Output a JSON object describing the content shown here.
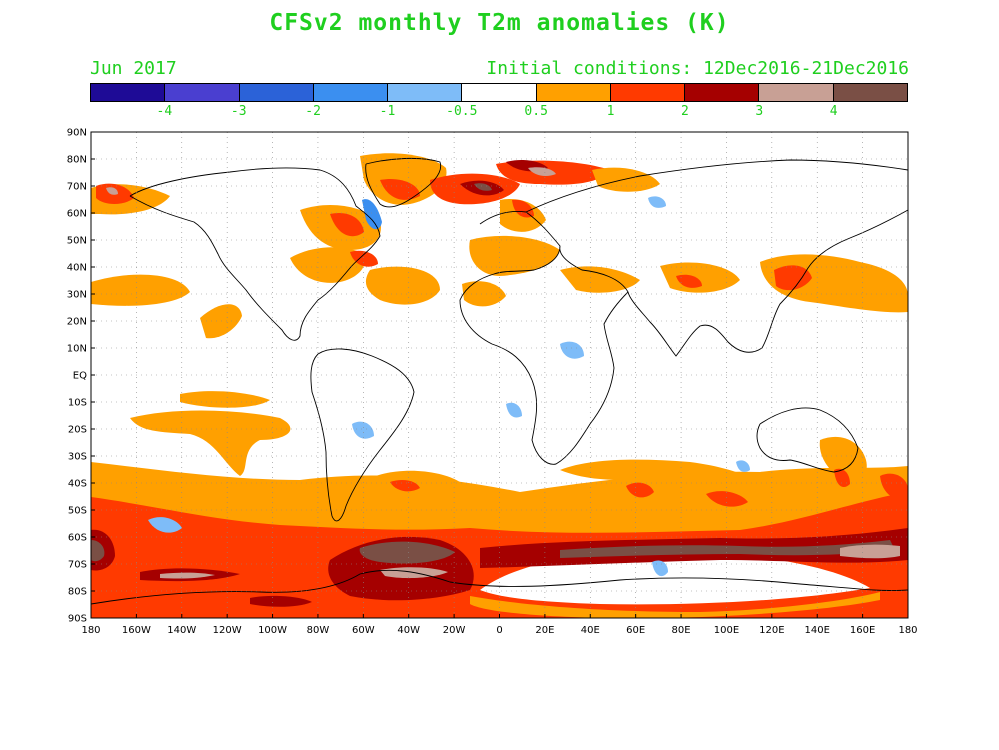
{
  "title": "CFSv2 monthly T2m anomalies (K)",
  "subtitle_left": "Jun 2017",
  "subtitle_right": "Initial conditions: 12Dec2016-21Dec2016",
  "colorbar": {
    "colors": [
      "#1e0b96",
      "#4a3fd0",
      "#2b62d8",
      "#3b8ff0",
      "#7ebcf8",
      "#ffffff",
      "#ffa000",
      "#ff3a00",
      "#a50000",
      "#c8a095",
      "#7a4f45"
    ],
    "labels": [
      "-4",
      "-3",
      "-2",
      "-1",
      "-0.5",
      "0.5",
      "1",
      "2",
      "3",
      "4"
    ]
  },
  "axes": {
    "lat_labels": [
      "90N",
      "80N",
      "70N",
      "60N",
      "50N",
      "40N",
      "30N",
      "20N",
      "10N",
      "EQ",
      "10S",
      "20S",
      "30S",
      "40S",
      "50S",
      "60S",
      "70S",
      "80S",
      "90S"
    ],
    "lon_labels": [
      "180",
      "160W",
      "140W",
      "120W",
      "100W",
      "80W",
      "60W",
      "40W",
      "20W",
      "0",
      "20E",
      "40E",
      "60E",
      "80E",
      "100E",
      "120E",
      "140E",
      "160E",
      "180"
    ]
  }
}
